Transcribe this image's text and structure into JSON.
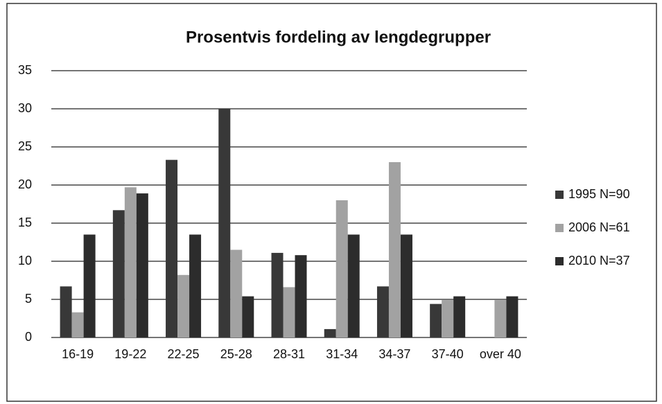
{
  "chart_data": {
    "type": "bar",
    "title": "Prosentvis fordeling av lengdegrupper",
    "categories": [
      "16-19",
      "19-22",
      "22-25",
      "25-28",
      "28-31",
      "31-34",
      "34-37",
      "37-40",
      "over 40"
    ],
    "series": [
      {
        "name": "1995 N=90",
        "color": "#383838",
        "values": [
          6.7,
          16.7,
          23.3,
          30,
          11.1,
          1.1,
          6.7,
          4.4,
          0
        ]
      },
      {
        "name": "2006 N=61",
        "color": "#a2a2a2",
        "values": [
          3.3,
          19.7,
          8.2,
          11.5,
          6.6,
          18,
          23,
          4.9,
          4.9
        ]
      },
      {
        "name": "2010 N=37",
        "color": "#2c2c2c",
        "values": [
          13.5,
          18.9,
          13.5,
          5.4,
          10.8,
          13.5,
          13.5,
          5.4,
          5.4
        ]
      }
    ],
    "ylim": [
      0,
      35
    ],
    "yticks": [
      0,
      5,
      10,
      15,
      20,
      25,
      30,
      35
    ],
    "grid": true,
    "legend": "right"
  }
}
